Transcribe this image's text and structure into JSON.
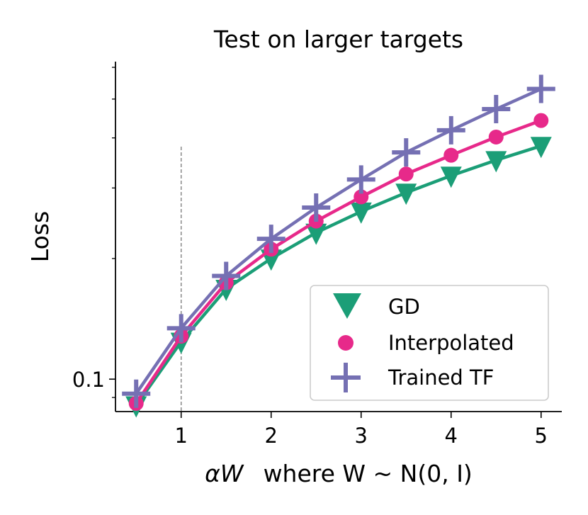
{
  "chart_data": {
    "type": "line",
    "title": "Test on larger targets",
    "xlabel_math": "αW",
    "xlabel_rest": "where W ~ N(0, I)",
    "ylabel": "Loss",
    "x": [
      0.5,
      1.0,
      1.5,
      2.0,
      2.5,
      3.0,
      3.5,
      4.0,
      4.5,
      5.0
    ],
    "xlim": [
      0.27,
      5.23
    ],
    "ylim": [
      0.083,
      0.62
    ],
    "yscale": "log",
    "xticks": [
      "1",
      "2",
      "3",
      "4",
      "5"
    ],
    "yticks": [
      "0.1"
    ],
    "reference_line_x": 1.0,
    "legend_position": "lower-right",
    "series": [
      {
        "name": "GD",
        "marker": "triangle-down",
        "color": "#1b9e77",
        "values": [
          0.086,
          0.124,
          0.168,
          0.2,
          0.232,
          0.262,
          0.292,
          0.322,
          0.352,
          0.382
        ]
      },
      {
        "name": "Interpolated",
        "marker": "circle",
        "color": "#e7298a",
        "values": [
          0.087,
          0.128,
          0.174,
          0.211,
          0.248,
          0.285,
          0.325,
          0.362,
          0.402,
          0.442
        ]
      },
      {
        "name": "Trained TF",
        "marker": "plus",
        "color": "#7570b3",
        "values": [
          0.092,
          0.134,
          0.181,
          0.224,
          0.268,
          0.315,
          0.368,
          0.418,
          0.472,
          0.53
        ]
      }
    ]
  }
}
